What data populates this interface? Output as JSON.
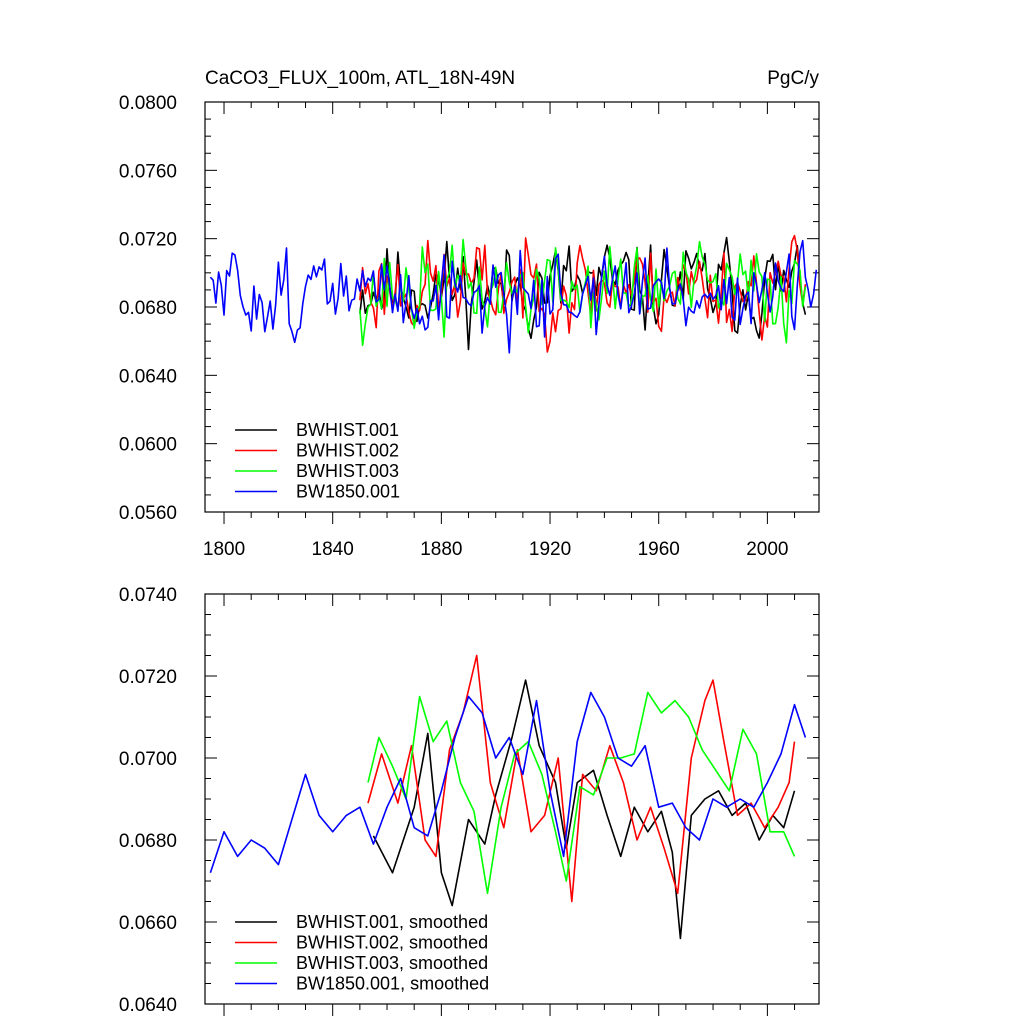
{
  "chart_data": [
    {
      "type": "line",
      "title": "CaCO3_FLUX_100m, ATL_18N-49N",
      "units": "PgC/y",
      "xlabel": "",
      "ylabel": "",
      "xlim": [
        1793,
        2019
      ],
      "ylim": [
        0.056,
        0.08
      ],
      "xticks": [
        1800,
        1840,
        1880,
        1920,
        1960,
        2000
      ],
      "yticks": [
        0.056,
        0.06,
        0.064,
        0.068,
        0.072,
        0.076,
        0.08
      ],
      "ytick_labels": [
        "0.0560",
        "0.0600",
        "0.0640",
        "0.0680",
        "0.0720",
        "0.0760",
        "0.0800"
      ],
      "legend_position": "bottom-left",
      "series": [
        {
          "name": "BWHIST.001",
          "color": "#000000",
          "x_start": 1850,
          "x_end": 2014,
          "mean": 0.0692,
          "amplitude": 0.0034,
          "seed": 11
        },
        {
          "name": "BWHIST.002",
          "color": "#ff0000",
          "x_start": 1850,
          "x_end": 2014,
          "mean": 0.0692,
          "amplitude": 0.0034,
          "seed": 23
        },
        {
          "name": "BWHIST.003",
          "color": "#00ff00",
          "x_start": 1850,
          "x_end": 2014,
          "mean": 0.069,
          "amplitude": 0.0034,
          "seed": 37
        },
        {
          "name": "BW1850.001",
          "color": "#0000ff",
          "x_start": 1795,
          "x_end": 2018,
          "mean": 0.0688,
          "amplitude": 0.0032,
          "seed": 51
        }
      ]
    },
    {
      "type": "line",
      "title": "",
      "xlabel": "",
      "ylabel": "",
      "xlim": [
        1793,
        2019
      ],
      "ylim": [
        0.064,
        0.074
      ],
      "xticks": [
        1800,
        1840,
        1880,
        1920,
        1960,
        2000
      ],
      "yticks": [
        0.064,
        0.066,
        0.068,
        0.07,
        0.072,
        0.074
      ],
      "ytick_labels": [
        "0.0640",
        "0.0660",
        "0.0680",
        "0.0700",
        "0.0720",
        "0.0740"
      ],
      "legend_position": "bottom-left",
      "series": [
        {
          "name": "BWHIST.001, smoothed",
          "color": "#000000",
          "x": [
            1855,
            1862,
            1870,
            1875,
            1880,
            1884,
            1890,
            1896,
            1900,
            1906,
            1911,
            1916,
            1922,
            1926,
            1930,
            1936,
            1941,
            1946,
            1951,
            1956,
            1961,
            1965,
            1968,
            1972,
            1977,
            1982,
            1987,
            1992,
            1997,
            2002,
            2006,
            2010
          ],
          "values": [
            0.0681,
            0.0672,
            0.0688,
            0.0706,
            0.0672,
            0.0664,
            0.0685,
            0.0679,
            0.0691,
            0.0705,
            0.0719,
            0.0703,
            0.0694,
            0.0678,
            0.0694,
            0.0697,
            0.0686,
            0.0676,
            0.0688,
            0.0682,
            0.0687,
            0.0677,
            0.0656,
            0.0686,
            0.069,
            0.0692,
            0.0686,
            0.0689,
            0.068,
            0.0686,
            0.0683,
            0.0692
          ]
        },
        {
          "name": "BWHIST.002, smoothed",
          "color": "#ff0000",
          "x": [
            1853,
            1858,
            1864,
            1869,
            1874,
            1878,
            1883,
            1888,
            1893,
            1898,
            1903,
            1908,
            1913,
            1918,
            1923,
            1928,
            1932,
            1937,
            1942,
            1947,
            1952,
            1957,
            1962,
            1967,
            1972,
            1977,
            1980,
            1984,
            1989,
            1994,
            1999,
            2004,
            2008,
            2010
          ],
          "values": [
            0.0689,
            0.0701,
            0.0689,
            0.0703,
            0.068,
            0.0676,
            0.0702,
            0.0711,
            0.0725,
            0.0694,
            0.0683,
            0.0702,
            0.0682,
            0.0686,
            0.07,
            0.0665,
            0.0696,
            0.0692,
            0.0703,
            0.0694,
            0.068,
            0.0688,
            0.0678,
            0.0667,
            0.07,
            0.0714,
            0.0719,
            0.0704,
            0.0686,
            0.0689,
            0.0683,
            0.0688,
            0.0694,
            0.0704
          ]
        },
        {
          "name": "BWHIST.003, smoothed",
          "color": "#00ff00",
          "x": [
            1853,
            1857,
            1862,
            1867,
            1872,
            1877,
            1882,
            1887,
            1892,
            1897,
            1902,
            1907,
            1912,
            1917,
            1922,
            1926,
            1931,
            1936,
            1941,
            1946,
            1951,
            1956,
            1961,
            1966,
            1971,
            1976,
            1981,
            1986,
            1991,
            1996,
            2001,
            2006,
            2010
          ],
          "values": [
            0.0694,
            0.0705,
            0.0698,
            0.069,
            0.0715,
            0.0704,
            0.0709,
            0.0694,
            0.0687,
            0.0667,
            0.0688,
            0.0701,
            0.0704,
            0.0696,
            0.0682,
            0.067,
            0.0693,
            0.0691,
            0.07,
            0.07,
            0.0701,
            0.0716,
            0.0711,
            0.0714,
            0.071,
            0.0702,
            0.0697,
            0.0692,
            0.0707,
            0.0701,
            0.0682,
            0.0682,
            0.0676
          ]
        },
        {
          "name": "BW1850.001, smoothed",
          "color": "#0000ff",
          "x": [
            1795,
            1800,
            1805,
            1810,
            1815,
            1820,
            1825,
            1830,
            1835,
            1840,
            1845,
            1850,
            1855,
            1860,
            1865,
            1870,
            1875,
            1880,
            1885,
            1890,
            1895,
            1900,
            1905,
            1910,
            1915,
            1920,
            1925,
            1930,
            1935,
            1940,
            1945,
            1950,
            1955,
            1960,
            1965,
            1970,
            1975,
            1980,
            1985,
            1990,
            1995,
            2000,
            2005,
            2010,
            2014
          ],
          "values": [
            0.0672,
            0.0682,
            0.0676,
            0.068,
            0.0678,
            0.0674,
            0.0685,
            0.0696,
            0.0686,
            0.0682,
            0.0686,
            0.0688,
            0.0679,
            0.0688,
            0.0695,
            0.0683,
            0.0681,
            0.0692,
            0.0705,
            0.0715,
            0.0711,
            0.07,
            0.0705,
            0.0696,
            0.0714,
            0.0692,
            0.0676,
            0.0704,
            0.0716,
            0.071,
            0.07,
            0.0698,
            0.0703,
            0.0688,
            0.0689,
            0.0683,
            0.068,
            0.069,
            0.0688,
            0.069,
            0.0688,
            0.0694,
            0.0701,
            0.0713,
            0.0705
          ]
        }
      ]
    }
  ]
}
